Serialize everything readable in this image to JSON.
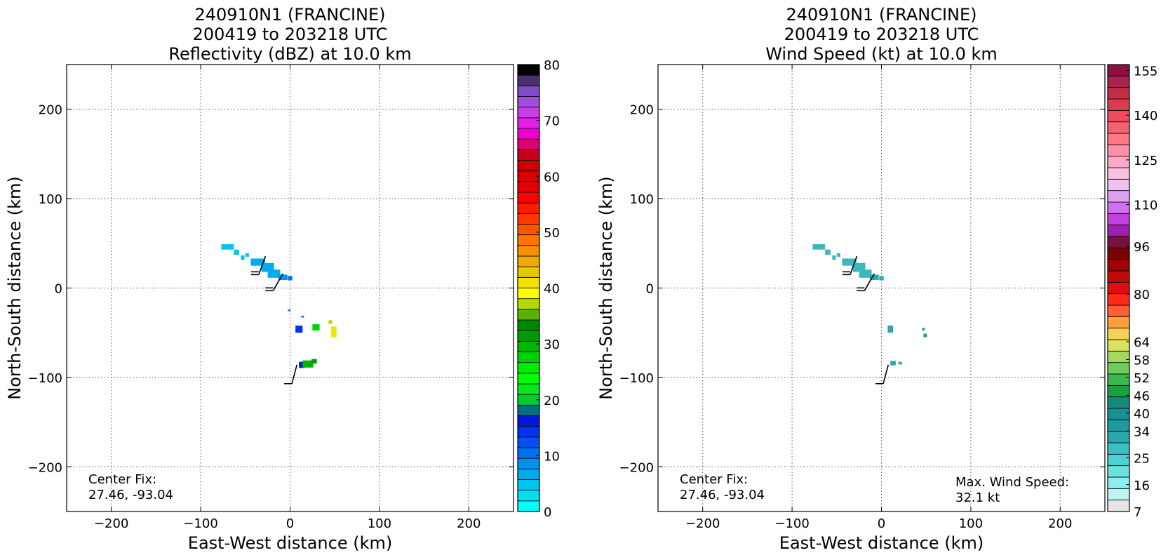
{
  "chart_data": [
    {
      "type": "heatmap",
      "title_lines": [
        "240910N1 (FRANCINE)",
        "200419 to 203218 UTC",
        "Reflectivity (dBZ) at 10.0 km"
      ],
      "xlabel": "East-West distance (km)",
      "ylabel": "North-South distance (km)",
      "xlim": [
        -250,
        250
      ],
      "ylim": [
        -250,
        250
      ],
      "xticks": [
        -200,
        -100,
        0,
        100,
        200
      ],
      "yticks": [
        -200,
        -100,
        0,
        100,
        200
      ],
      "xtick_labels": [
        "−200",
        "−100",
        "0",
        "100",
        "200"
      ],
      "ytick_labels": [
        "−200",
        "−100",
        "0",
        "100",
        "200"
      ],
      "grid": true,
      "annotations": [
        "Center Fix:",
        "27.46, -93.04"
      ],
      "colorbar": {
        "min": 0,
        "max": 80,
        "tick_values": [
          0,
          10,
          20,
          30,
          40,
          50,
          60,
          70,
          80
        ],
        "tick_labels": [
          "0",
          "10",
          "20",
          "30",
          "40",
          "50",
          "60",
          "70",
          "80"
        ],
        "colors": [
          "#00ffff",
          "#00e1ef",
          "#00c6ee",
          "#00abee",
          "#0091f0",
          "#0070ef",
          "#0052f0",
          "#0033ef",
          "#0018d6",
          "#006f7f",
          "#00cc33",
          "#00e81c",
          "#00ff00",
          "#00ee00",
          "#00d200",
          "#00b700",
          "#009b00",
          "#008600",
          "#5bb300",
          "#b4d900",
          "#ffff00",
          "#f1e200",
          "#e8c600",
          "#eeaa00",
          "#f59000",
          "#ff7300",
          "#ff5500",
          "#ff3700",
          "#ff1a00",
          "#ff0000",
          "#e60000",
          "#d70000",
          "#cc0000",
          "#c30019",
          "#db0073",
          "#f000cc",
          "#e31eeb",
          "#c83ce6",
          "#a04cdc",
          "#7d4ac8",
          "#4c2f6f",
          "#000000"
        ]
      },
      "echo_cells": [
        {
          "x": -70,
          "y": 46,
          "w": 14,
          "h": 6,
          "color": "#00c6ee"
        },
        {
          "x": -60,
          "y": 40,
          "w": 6,
          "h": 6,
          "color": "#00c6ee"
        },
        {
          "x": -48,
          "y": 37,
          "w": 4,
          "h": 4,
          "color": "#00c6ee"
        },
        {
          "x": -53,
          "y": 34,
          "w": 4,
          "h": 5,
          "color": "#00c6ee"
        },
        {
          "x": -36,
          "y": 29,
          "w": 16,
          "h": 8,
          "color": "#00abee"
        },
        {
          "x": -25,
          "y": 23,
          "w": 14,
          "h": 10,
          "color": "#00abee"
        },
        {
          "x": -18,
          "y": 16,
          "w": 14,
          "h": 9,
          "color": "#00abee"
        },
        {
          "x": -8,
          "y": 12,
          "w": 10,
          "h": 6,
          "color": "#0091f0"
        },
        {
          "x": 0,
          "y": 11,
          "w": 5,
          "h": 5,
          "color": "#0070ef"
        },
        {
          "x": -1,
          "y": -25,
          "w": 3,
          "h": 2,
          "color": "#0070ef"
        },
        {
          "x": 14,
          "y": -32,
          "w": 3,
          "h": 2,
          "color": "#0070ef"
        },
        {
          "x": 10,
          "y": -46,
          "w": 8,
          "h": 8,
          "color": "#0033ef"
        },
        {
          "x": 29,
          "y": -44,
          "w": 8,
          "h": 7,
          "color": "#00d200"
        },
        {
          "x": 45,
          "y": -38,
          "w": 4,
          "h": 4,
          "color": "#b4d900"
        },
        {
          "x": 49,
          "y": -49,
          "w": 6,
          "h": 12,
          "color": "#e8e800"
        },
        {
          "x": 13,
          "y": -86,
          "w": 6,
          "h": 7,
          "color": "#0018d6"
        },
        {
          "x": 20,
          "y": -85,
          "w": 12,
          "h": 8,
          "color": "#00b700"
        },
        {
          "x": 27,
          "y": -82,
          "w": 6,
          "h": 5,
          "color": "#009b00"
        }
      ],
      "wind_barbs": [
        {
          "x": -35,
          "y": 15,
          "dir_deg": 20,
          "barbs": 2
        },
        {
          "x": -19,
          "y": -3,
          "dir_deg": 30,
          "barbs": 2
        },
        {
          "x": 2,
          "y": -107,
          "dir_deg": 15,
          "barbs": 1
        }
      ]
    },
    {
      "type": "heatmap",
      "title_lines": [
        "240910N1 (FRANCINE)",
        "200419 to 203218 UTC",
        "Wind Speed (kt) at 10.0 km"
      ],
      "xlabel": "East-West distance (km)",
      "ylabel": "North-South distance (km)",
      "xlim": [
        -250,
        250
      ],
      "ylim": [
        -250,
        250
      ],
      "xticks": [
        -200,
        -100,
        0,
        100,
        200
      ],
      "yticks": [
        -200,
        -100,
        0,
        100,
        200
      ],
      "xtick_labels": [
        "−200",
        "−100",
        "0",
        "100",
        "200"
      ],
      "ytick_labels": [
        "−200",
        "−100",
        "0",
        "100",
        "200"
      ],
      "grid": true,
      "annotations": [
        "Center Fix:",
        "27.46, -93.04",
        "Max. Wind Speed:",
        "32.1 kt"
      ],
      "colorbar": {
        "min": 7,
        "max": 157,
        "tick_values": [
          7,
          16,
          25,
          34,
          40,
          46,
          52,
          58,
          64,
          80,
          96,
          110,
          125,
          140,
          155
        ],
        "tick_labels": [
          "7",
          "16",
          "25",
          "34",
          "40",
          "46",
          "52",
          "58",
          "64",
          "80",
          "96",
          "110",
          "125",
          "140",
          "155"
        ],
        "colors": [
          "#e6e6e6",
          "#bff2f2",
          "#8cf0ee",
          "#66e3e0",
          "#4cd2d2",
          "#3cbfc3",
          "#2ca7b0",
          "#1f9aa0",
          "#199090",
          "#148a7a",
          "#1aa03c",
          "#3cb84a",
          "#6dcc5a",
          "#a3d95e",
          "#d7e25e",
          "#f7cf5a",
          "#ff9f3c",
          "#ff6030",
          "#ff2a1a",
          "#e00d10",
          "#c00a0a",
          "#9b0505",
          "#7a0303",
          "#7a1040",
          "#a020b0",
          "#c040e0",
          "#d070f0",
          "#e0a0f0",
          "#f0c0f0",
          "#fbc0e0",
          "#fda8c8",
          "#fd90a8",
          "#fd7888",
          "#f76070",
          "#ee4b5c",
          "#dc3a4e",
          "#c22e46",
          "#a8244a",
          "#8e1040"
        ]
      },
      "echo_cells": [
        {
          "x": -70,
          "y": 46,
          "w": 14,
          "h": 6,
          "color": "#3cb7bd"
        },
        {
          "x": -60,
          "y": 40,
          "w": 6,
          "h": 6,
          "color": "#3cb7bd"
        },
        {
          "x": -48,
          "y": 37,
          "w": 4,
          "h": 4,
          "color": "#3cb7bd"
        },
        {
          "x": -53,
          "y": 34,
          "w": 4,
          "h": 5,
          "color": "#3cb7bd"
        },
        {
          "x": -36,
          "y": 29,
          "w": 16,
          "h": 8,
          "color": "#3cb7bd"
        },
        {
          "x": -25,
          "y": 23,
          "w": 14,
          "h": 10,
          "color": "#3cb7bd"
        },
        {
          "x": -18,
          "y": 16,
          "w": 14,
          "h": 9,
          "color": "#3cb7bd"
        },
        {
          "x": -8,
          "y": 12,
          "w": 10,
          "h": 6,
          "color": "#2ca7b0"
        },
        {
          "x": 0,
          "y": 11,
          "w": 5,
          "h": 5,
          "color": "#2ca7b0"
        },
        {
          "x": 10,
          "y": -46,
          "w": 6,
          "h": 8,
          "color": "#2ca7b0"
        },
        {
          "x": 47,
          "y": -46,
          "w": 3,
          "h": 3,
          "color": "#1f9aa0"
        },
        {
          "x": 49,
          "y": -53,
          "w": 4,
          "h": 4,
          "color": "#1f9aa0"
        },
        {
          "x": 13,
          "y": -84,
          "w": 6,
          "h": 5,
          "color": "#2ca7b0"
        },
        {
          "x": 21,
          "y": -84,
          "w": 4,
          "h": 3,
          "color": "#2ca7b0"
        }
      ],
      "wind_barbs": [
        {
          "x": -35,
          "y": 15,
          "dir_deg": 20,
          "barbs": 2
        },
        {
          "x": -19,
          "y": -3,
          "dir_deg": 30,
          "barbs": 2
        },
        {
          "x": 2,
          "y": -107,
          "dir_deg": 15,
          "barbs": 1
        }
      ]
    }
  ]
}
